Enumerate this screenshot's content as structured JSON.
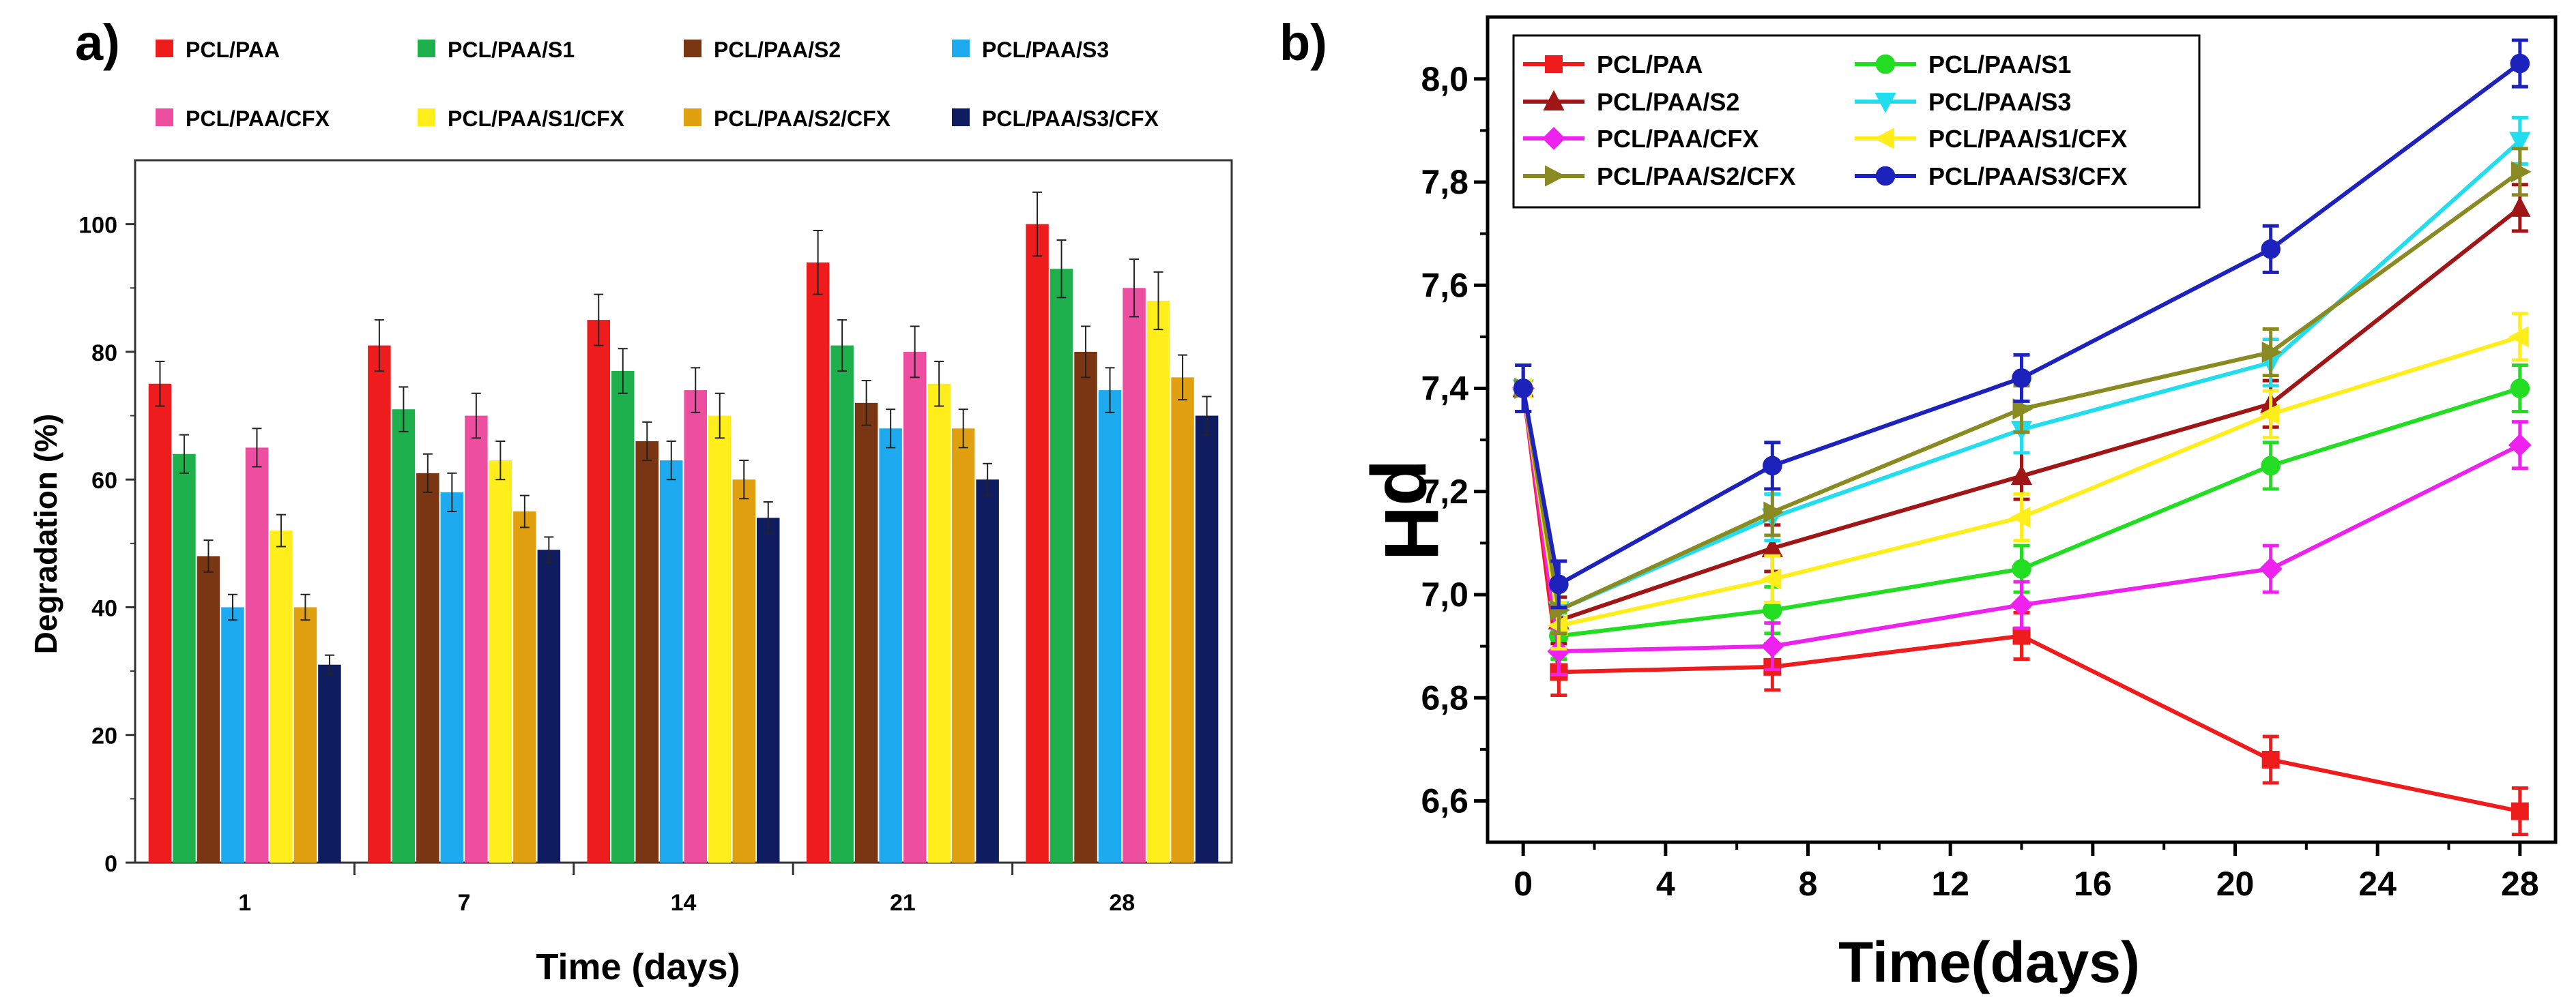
{
  "chart_data": [
    {
      "panel_label": "a)",
      "type": "bar",
      "title": "",
      "xlabel": "Time (days)",
      "ylabel": "Degradation (%)",
      "ylim": [
        0,
        110
      ],
      "yticks": [
        "0",
        "20",
        "40",
        "60",
        "80",
        "100"
      ],
      "categories": [
        "1",
        "7",
        "14",
        "21",
        "28"
      ],
      "legend_position": "top",
      "series": [
        {
          "name": "PCL/PAA",
          "color": "#ee1c1c",
          "values": [
            75,
            81,
            85,
            94,
            100
          ],
          "errors": [
            3.5,
            4,
            4,
            5,
            5
          ]
        },
        {
          "name": "PCL/PAA/S1",
          "color": "#1eb04c",
          "values": [
            64,
            71,
            77,
            81,
            93
          ],
          "errors": [
            3,
            3.5,
            3.5,
            4,
            4.5
          ]
        },
        {
          "name": "PCL/PAA/S2",
          "color": "#7a3512",
          "values": [
            48,
            61,
            66,
            72,
            80
          ],
          "errors": [
            2.5,
            3,
            3,
            3.5,
            4
          ]
        },
        {
          "name": "PCL/PAA/S3",
          "color": "#1eaaee",
          "values": [
            40,
            58,
            63,
            68,
            74
          ],
          "errors": [
            2,
            3,
            3,
            3,
            3.5
          ]
        },
        {
          "name": "PCL/PAA/CFX",
          "color": "#ee4ea0",
          "values": [
            65,
            70,
            74,
            80,
            90
          ],
          "errors": [
            3,
            3.5,
            3.5,
            4,
            4.5
          ]
        },
        {
          "name": "PCL/PAA/S1/CFX",
          "color": "#ffee1c",
          "values": [
            52,
            63,
            70,
            75,
            88
          ],
          "errors": [
            2.5,
            3,
            3.5,
            3.5,
            4.5
          ]
        },
        {
          "name": "PCL/PAA/S2/CFX",
          "color": "#e0a010",
          "values": [
            40,
            55,
            60,
            68,
            76
          ],
          "errors": [
            2,
            2.5,
            3,
            3,
            3.5
          ]
        },
        {
          "name": "PCL/PAA/S3/CFX",
          "color": "#101c60",
          "values": [
            31,
            49,
            54,
            60,
            70
          ],
          "errors": [
            1.5,
            2,
            2.5,
            2.5,
            3
          ]
        }
      ]
    },
    {
      "panel_label": "b)",
      "type": "line",
      "title": "",
      "xlabel": "Time(days)",
      "ylabel": "pH",
      "xlim": [
        -1,
        29
      ],
      "ylim": [
        6.52,
        8.12
      ],
      "xticks": [
        "0",
        "4",
        "8",
        "12",
        "16",
        "20",
        "24",
        "28"
      ],
      "yticks": [
        "6,6",
        "6,8",
        "7,0",
        "7,2",
        "7,4",
        "7,6",
        "7,8",
        "8,0"
      ],
      "x": [
        0,
        1,
        7,
        14,
        21,
        28
      ],
      "legend_position": "top-left",
      "series": [
        {
          "name": "PCL/PAA",
          "color": "#ee1c1c",
          "marker": "square",
          "values": [
            7.4,
            6.85,
            6.86,
            6.92,
            6.68,
            6.58
          ]
        },
        {
          "name": "PCL/PAA/S1",
          "color": "#22dd22",
          "marker": "circle",
          "values": [
            7.4,
            6.92,
            6.97,
            7.05,
            7.25,
            7.4
          ]
        },
        {
          "name": "PCL/PAA/S2",
          "color": "#a01515",
          "marker": "triangle-up",
          "values": [
            7.4,
            6.95,
            7.09,
            7.23,
            7.37,
            7.75
          ]
        },
        {
          "name": "PCL/PAA/S3",
          "color": "#22ddee",
          "marker": "triangle-down",
          "values": [
            7.4,
            6.97,
            7.15,
            7.32,
            7.45,
            7.88
          ]
        },
        {
          "name": "PCL/PAA/CFX",
          "color": "#ee22ee",
          "marker": "diamond",
          "values": [
            7.4,
            6.89,
            6.9,
            6.98,
            7.05,
            7.29
          ]
        },
        {
          "name": "PCL/PAA/S1/CFX",
          "color": "#ffee1c",
          "marker": "triangle-left",
          "values": [
            7.4,
            6.94,
            7.03,
            7.15,
            7.35,
            7.5
          ]
        },
        {
          "name": "PCL/PAA/S2/CFX",
          "color": "#8a8a22",
          "marker": "triangle-right",
          "values": [
            7.4,
            6.97,
            7.16,
            7.36,
            7.47,
            7.82
          ]
        },
        {
          "name": "PCL/PAA/S3/CFX",
          "color": "#1c22bb",
          "marker": "circle",
          "values": [
            7.4,
            7.02,
            7.25,
            7.42,
            7.67,
            8.03
          ]
        }
      ]
    }
  ]
}
